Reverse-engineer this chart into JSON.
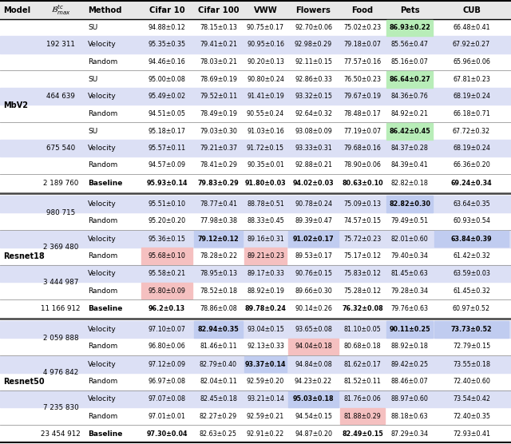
{
  "headers": [
    "Model",
    "$\\mathcal{B}^{tc}_{max}$",
    "Method",
    "Cifar 10",
    "Cifar 100",
    "VWW",
    "Flowers",
    "Food",
    "Pets",
    "CUB"
  ],
  "sections": [
    {
      "model": "MbV2",
      "groups": [
        {
          "budget": "192 311",
          "rows": [
            {
              "method": "SU",
              "vals": [
                "94.88±0.12",
                "78.15±0.13",
                "90.75±0.17",
                "92.70±0.06",
                "75.02±0.23",
                "86.93±0.22",
                "66.48±0.41"
              ],
              "cell_styles": [
                "",
                "",
                "",
                "",
                "",
                "green_bold",
                ""
              ]
            },
            {
              "method": "Velocity",
              "vals": [
                "95.35±0.35",
                "79.41±0.21",
                "90.95±0.16",
                "92.98±0.29",
                "79.18±0.07",
                "85.56±0.47",
                "67.92±0.27"
              ],
              "cell_styles": [
                "",
                "",
                "",
                "",
                "",
                "",
                ""
              ],
              "row_bg": "velocity"
            },
            {
              "method": "Random",
              "vals": [
                "94.46±0.16",
                "78.03±0.21",
                "90.20±0.13",
                "92.11±0.15",
                "77.57±0.16",
                "85.16±0.07",
                "65.96±0.06"
              ],
              "cell_styles": [
                "",
                "",
                "",
                "",
                "",
                "",
                ""
              ]
            }
          ]
        },
        {
          "budget": "464 639",
          "rows": [
            {
              "method": "SU",
              "vals": [
                "95.00±0.08",
                "78.69±0.19",
                "90.80±0.24",
                "92.86±0.33",
                "76.50±0.23",
                "86.64±0.27",
                "67.81±0.23"
              ],
              "cell_styles": [
                "",
                "",
                "",
                "",
                "",
                "green_bold",
                ""
              ]
            },
            {
              "method": "Velocity",
              "vals": [
                "95.49±0.02",
                "79.52±0.11",
                "91.41±0.19",
                "93.32±0.15",
                "79.67±0.19",
                "84.36±0.76",
                "68.19±0.24"
              ],
              "cell_styles": [
                "",
                "",
                "",
                "",
                "",
                "",
                ""
              ],
              "row_bg": "velocity"
            },
            {
              "method": "Random",
              "vals": [
                "94.51±0.05",
                "78.49±0.19",
                "90.55±0.24",
                "92.64±0.32",
                "78.48±0.17",
                "84.92±0.21",
                "66.18±0.71"
              ],
              "cell_styles": [
                "",
                "",
                "",
                "",
                "",
                "",
                ""
              ]
            }
          ]
        },
        {
          "budget": "675 540",
          "rows": [
            {
              "method": "SU",
              "vals": [
                "95.18±0.17",
                "79.03±0.30",
                "91.03±0.16",
                "93.08±0.09",
                "77.19±0.07",
                "86.42±0.45",
                "67.72±0.32"
              ],
              "cell_styles": [
                "",
                "",
                "",
                "",
                "",
                "green_bold",
                ""
              ]
            },
            {
              "method": "Velocity",
              "vals": [
                "95.57±0.11",
                "79.21±0.37",
                "91.72±0.15",
                "93.33±0.31",
                "79.68±0.16",
                "84.37±0.28",
                "68.19±0.24"
              ],
              "cell_styles": [
                "",
                "",
                "",
                "",
                "",
                "",
                ""
              ],
              "row_bg": "velocity"
            },
            {
              "method": "Random",
              "vals": [
                "94.57±0.09",
                "78.41±0.29",
                "90.35±0.01",
                "92.88±0.21",
                "78.90±0.06",
                "84.39±0.41",
                "66.36±0.20"
              ],
              "cell_styles": [
                "",
                "",
                "",
                "",
                "",
                "",
                ""
              ]
            }
          ]
        },
        {
          "budget": "2 189 760",
          "rows": [
            {
              "method": "Baseline",
              "vals": [
                "95.93±0.14",
                "79.83±0.29",
                "91.80±0.03",
                "94.02±0.03",
                "80.63±0.10",
                "82.82±0.18",
                "69.24±0.34"
              ],
              "cell_styles": [
                "bold",
                "bold",
                "bold",
                "bold",
                "bold",
                "",
                "bold"
              ],
              "bold_method": true
            }
          ]
        }
      ]
    },
    {
      "model": "Resnet18",
      "groups": [
        {
          "budget": "980 715",
          "rows": [
            {
              "method": "Velocity",
              "vals": [
                "95.51±0.10",
                "78.77±0.41",
                "88.78±0.51",
                "90.78±0.24",
                "75.09±0.13",
                "82.82±0.30",
                "63.64±0.35"
              ],
              "cell_styles": [
                "",
                "",
                "",
                "",
                "",
                "blue_bold",
                ""
              ],
              "row_bg": "velocity"
            },
            {
              "method": "Random",
              "vals": [
                "95.20±0.20",
                "77.98±0.38",
                "88.33±0.45",
                "89.39±0.47",
                "74.57±0.15",
                "79.49±0.51",
                "60.93±0.54"
              ],
              "cell_styles": [
                "",
                "",
                "",
                "",
                "",
                "",
                ""
              ]
            }
          ]
        },
        {
          "budget": "2 369 480",
          "rows": [
            {
              "method": "Velocity",
              "vals": [
                "95.36±0.15",
                "79.12±0.12",
                "89.16±0.31",
                "91.02±0.17",
                "75.72±0.23",
                "82.01±0.60",
                "63.84±0.39"
              ],
              "cell_styles": [
                "",
                "blue_bold",
                "",
                "blue_bold",
                "",
                "",
                "blue_bold"
              ],
              "row_bg": "velocity"
            },
            {
              "method": "Random",
              "vals": [
                "95.68±0.10",
                "78.28±0.22",
                "89.21±0.23",
                "89.53±0.17",
                "75.17±0.12",
                "79.40±0.34",
                "61.42±0.32"
              ],
              "cell_styles": [
                "red",
                "",
                "red",
                "",
                "",
                "",
                ""
              ]
            }
          ]
        },
        {
          "budget": "3 444 987",
          "rows": [
            {
              "method": "Velocity",
              "vals": [
                "95.58±0.21",
                "78.95±0.13",
                "89.17±0.33",
                "90.76±0.15",
                "75.83±0.12",
                "81.45±0.63",
                "63.59±0.03"
              ],
              "cell_styles": [
                "",
                "",
                "",
                "",
                "",
                "",
                ""
              ],
              "row_bg": "velocity"
            },
            {
              "method": "Random",
              "vals": [
                "95.80±0.09",
                "78.52±0.18",
                "88.92±0.19",
                "89.66±0.30",
                "75.28±0.12",
                "79.28±0.34",
                "61.45±0.32"
              ],
              "cell_styles": [
                "red",
                "",
                "",
                "",
                "",
                "",
                ""
              ]
            }
          ]
        },
        {
          "budget": "11 166 912",
          "rows": [
            {
              "method": "Baseline",
              "vals": [
                "96.2±0.13",
                "78.86±0.08",
                "89.78±0.24",
                "90.14±0.26",
                "76.32±0.08",
                "79.76±0.63",
                "60.97±0.52"
              ],
              "cell_styles": [
                "bold",
                "",
                "bold",
                "",
                "bold",
                "",
                ""
              ],
              "bold_method": true
            }
          ]
        }
      ]
    },
    {
      "model": "Resnet50",
      "groups": [
        {
          "budget": "2 059 888",
          "rows": [
            {
              "method": "Velocity",
              "vals": [
                "97.10±0.07",
                "82.94±0.35",
                "93.04±0.15",
                "93.65±0.08",
                "81.10±0.05",
                "90.11±0.25",
                "73.73±0.52"
              ],
              "cell_styles": [
                "",
                "blue_bold",
                "",
                "",
                "",
                "blue_bold",
                "blue_bold"
              ],
              "row_bg": "velocity"
            },
            {
              "method": "Random",
              "vals": [
                "96.80±0.06",
                "81.46±0.11",
                "92.13±0.33",
                "94.04±0.18",
                "80.68±0.18",
                "88.92±0.18",
                "72.79±0.15"
              ],
              "cell_styles": [
                "",
                "",
                "",
                "red",
                "",
                "",
                ""
              ]
            }
          ]
        },
        {
          "budget": "4 976 842",
          "rows": [
            {
              "method": "Velocity",
              "vals": [
                "97.12±0.09",
                "82.79±0.40",
                "93.37±0.14",
                "94.84±0.08",
                "81.62±0.17",
                "89.42±0.25",
                "73.55±0.18"
              ],
              "cell_styles": [
                "",
                "",
                "blue_bold",
                "",
                "",
                "",
                ""
              ],
              "row_bg": "velocity"
            },
            {
              "method": "Random",
              "vals": [
                "96.97±0.08",
                "82.04±0.11",
                "92.59±0.20",
                "94.23±0.22",
                "81.52±0.11",
                "88.46±0.07",
                "72.40±0.60"
              ],
              "cell_styles": [
                "",
                "",
                "",
                "",
                "",
                "",
                ""
              ]
            }
          ]
        },
        {
          "budget": "7 235 830",
          "rows": [
            {
              "method": "Velocity",
              "vals": [
                "97.07±0.08",
                "82.45±0.18",
                "93.21±0.14",
                "95.03±0.18",
                "81.76±0.06",
                "88.97±0.60",
                "73.54±0.42"
              ],
              "cell_styles": [
                "",
                "",
                "",
                "blue_bold",
                "",
                "",
                ""
              ],
              "row_bg": "velocity"
            },
            {
              "method": "Random",
              "vals": [
                "97.01±0.01",
                "82.27±0.29",
                "92.59±0.21",
                "94.54±0.15",
                "81.88±0.29",
                "88.18±0.63",
                "72.40±0.35"
              ],
              "cell_styles": [
                "",
                "",
                "",
                "",
                "red",
                "",
                ""
              ]
            }
          ]
        },
        {
          "budget": "23 454 912",
          "rows": [
            {
              "method": "Baseline",
              "vals": [
                "97.30±0.04",
                "82.63±0.25",
                "92.91±0.22",
                "94.87±0.20",
                "82.49±0.15",
                "87.29±0.34",
                "72.93±0.41"
              ],
              "cell_styles": [
                "bold",
                "",
                "",
                "",
                "bold",
                "",
                ""
              ],
              "bold_method": true
            }
          ]
        }
      ]
    }
  ],
  "velocity_bg": "#dce0f5",
  "green_bg": "#b8edb8",
  "red_bg": "#f5c0c0",
  "blue_bg": "#c0ccf0"
}
